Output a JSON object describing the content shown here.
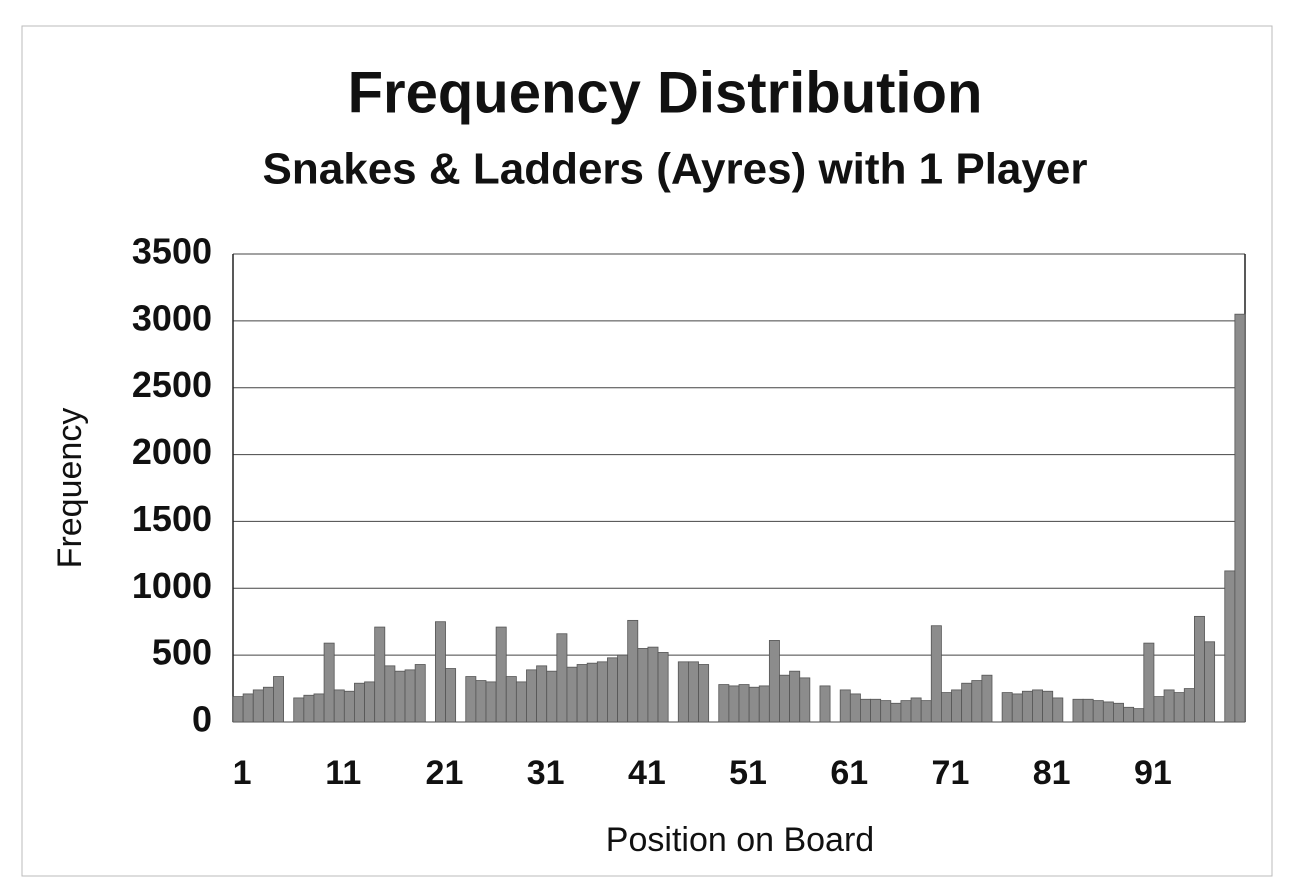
{
  "chart_data": {
    "type": "bar",
    "title": "Frequency Distribution",
    "subtitle": "Snakes & Ladders (Ayres)  with 1 Player",
    "x_label": "Position on Board",
    "y_label": "Frequency",
    "categories": [
      "1",
      null,
      null,
      null,
      null,
      null,
      null,
      null,
      null,
      null,
      "11",
      null,
      null,
      null,
      null,
      null,
      null,
      null,
      null,
      null,
      "21",
      null,
      null,
      null,
      null,
      null,
      null,
      null,
      null,
      null,
      "31",
      null,
      null,
      null,
      null,
      null,
      null,
      null,
      null,
      null,
      "41",
      null,
      null,
      null,
      null,
      null,
      null,
      null,
      null,
      null,
      "51",
      null,
      null,
      null,
      null,
      null,
      null,
      null,
      null,
      null,
      "61",
      null,
      null,
      null,
      null,
      null,
      null,
      null,
      null,
      null,
      "71",
      null,
      null,
      null,
      null,
      null,
      null,
      null,
      null,
      null,
      "81",
      null,
      null,
      null,
      null,
      null,
      null,
      null,
      null,
      null,
      "91",
      null,
      null,
      null,
      null,
      null,
      null,
      null,
      null,
      null
    ],
    "values": [
      190,
      210,
      240,
      260,
      340,
      0,
      180,
      200,
      210,
      590,
      240,
      230,
      290,
      300,
      710,
      420,
      380,
      390,
      430,
      0,
      750,
      400,
      0,
      340,
      310,
      300,
      710,
      340,
      300,
      390,
      420,
      380,
      660,
      410,
      430,
      440,
      450,
      480,
      500,
      760,
      550,
      560,
      520,
      0,
      450,
      450,
      430,
      0,
      280,
      270,
      280,
      260,
      270,
      610,
      350,
      380,
      330,
      0,
      270,
      0,
      240,
      210,
      170,
      170,
      160,
      140,
      160,
      180,
      160,
      720,
      220,
      240,
      290,
      310,
      350,
      0,
      220,
      210,
      230,
      240,
      230,
      180,
      0,
      170,
      170,
      160,
      150,
      140,
      110,
      100,
      590,
      190,
      240,
      220,
      250,
      790,
      600,
      0,
      1130,
      3050
    ],
    "color": "#8c8c8c",
    "ylim": [
      0,
      3500
    ],
    "yticks": [
      0,
      500,
      1000,
      1500,
      2000,
      2500,
      3000,
      3500
    ],
    "grid": true
  }
}
